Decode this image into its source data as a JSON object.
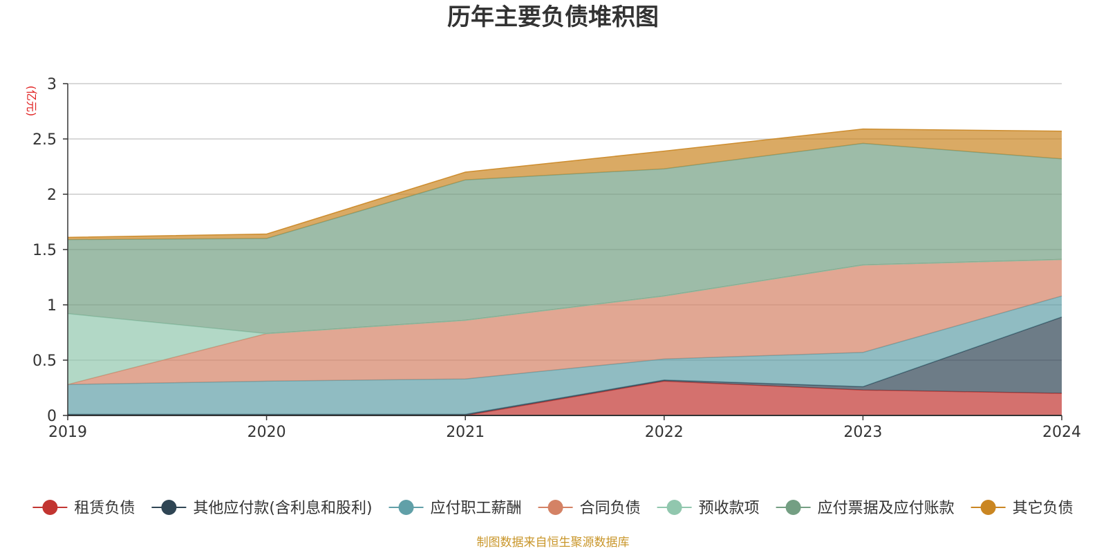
{
  "chart_data": {
    "type": "area",
    "stacked": true,
    "title": "历年主要负债堆积图",
    "unit": "(亿元)",
    "x": [
      "2019",
      "2020",
      "2021",
      "2022",
      "2023",
      "2024"
    ],
    "ylim": [
      0,
      3
    ],
    "yticks": [
      "0",
      "0.5",
      "1",
      "1.5",
      "2",
      "2.5",
      "3"
    ],
    "grid": true,
    "legend_position": "bottom",
    "series": [
      {
        "name": "租赁负债",
        "color": "#c23531",
        "values": [
          0.0,
          0.0,
          0.0,
          0.31,
          0.23,
          0.2
        ]
      },
      {
        "name": "其他应付款(含利息和股利)",
        "color": "#2f4554",
        "values": [
          0.01,
          0.01,
          0.01,
          0.01,
          0.03,
          0.69
        ]
      },
      {
        "name": "应付职工薪酬",
        "color": "#61a0a8",
        "values": [
          0.27,
          0.3,
          0.32,
          0.19,
          0.31,
          0.19
        ]
      },
      {
        "name": "合同负债",
        "color": "#d48265",
        "values": [
          0.0,
          0.43,
          0.53,
          0.57,
          0.79,
          0.33
        ]
      },
      {
        "name": "预收款项",
        "color": "#91c7ae",
        "values": [
          0.64,
          0.0,
          0.0,
          0.0,
          0.0,
          0.0
        ]
      },
      {
        "name": "应付票据及应付账款",
        "color": "#749f83",
        "values": [
          0.67,
          0.86,
          1.27,
          1.15,
          1.1,
          0.91
        ]
      },
      {
        "name": "其它负债",
        "color": "#ca8622",
        "values": [
          0.02,
          0.04,
          0.07,
          0.16,
          0.13,
          0.25
        ]
      }
    ],
    "source": "制图数据来自恒生聚源数据库"
  }
}
